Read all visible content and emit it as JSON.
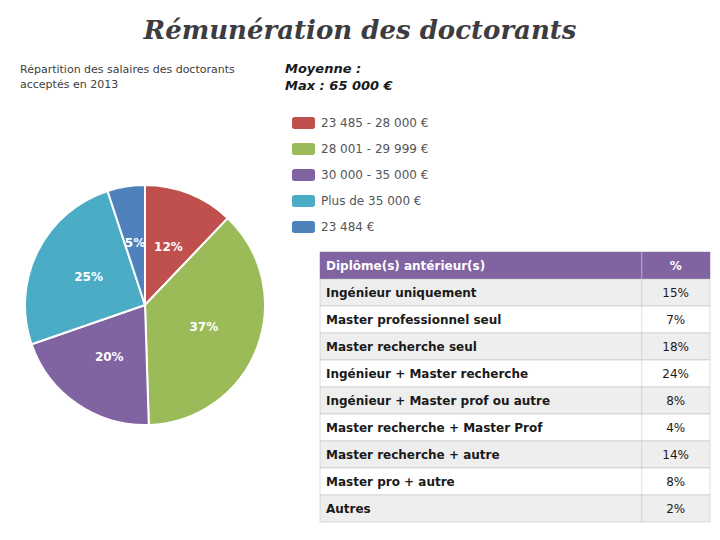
{
  "chart_data": [
    {
      "type": "pie",
      "title": "Rémunération des doctorants",
      "subtitle": "Répartition des salaires des doctorants\nacceptés en 2013",
      "annotations": [
        "Moyenne :\nMax : 65 000 €"
      ],
      "categories": [
        "23 485 - 28 000 €",
        "28 001 - 29 999 €",
        "30 000 - 35 000 €",
        "Plus de 35 000 €",
        "23 484 €"
      ],
      "values": [
        12,
        37,
        20,
        25,
        5
      ],
      "value_labels": [
        "12%",
        "37%",
        "20%",
        "25%",
        "5%"
      ],
      "colors": [
        "#c0504d",
        "#9bbb59",
        "#8064a2",
        "#4bacc6",
        "#4f81bd"
      ],
      "data_labels": true,
      "legend": "right"
    },
    {
      "type": "table",
      "header": [
        "Diplôme(s) antérieur(s)",
        "%"
      ],
      "categories": [
        "Ingénieur uniquement",
        "Master professionnel seul",
        "Master recherche seul",
        "Ingénieur + Master recherche",
        "Ingénieur + Master prof ou autre",
        "Master recherche + Master Prof",
        "Master recherche + autre",
        "Master pro + autre",
        "Autres"
      ],
      "values": [
        15,
        7,
        18,
        24,
        8,
        4,
        14,
        8,
        2
      ],
      "value_labels": [
        "15%",
        "7%",
        "18%",
        "24%",
        "8%",
        "4%",
        "14%",
        "8%",
        "2%"
      ],
      "color": "#8064a2"
    }
  ]
}
